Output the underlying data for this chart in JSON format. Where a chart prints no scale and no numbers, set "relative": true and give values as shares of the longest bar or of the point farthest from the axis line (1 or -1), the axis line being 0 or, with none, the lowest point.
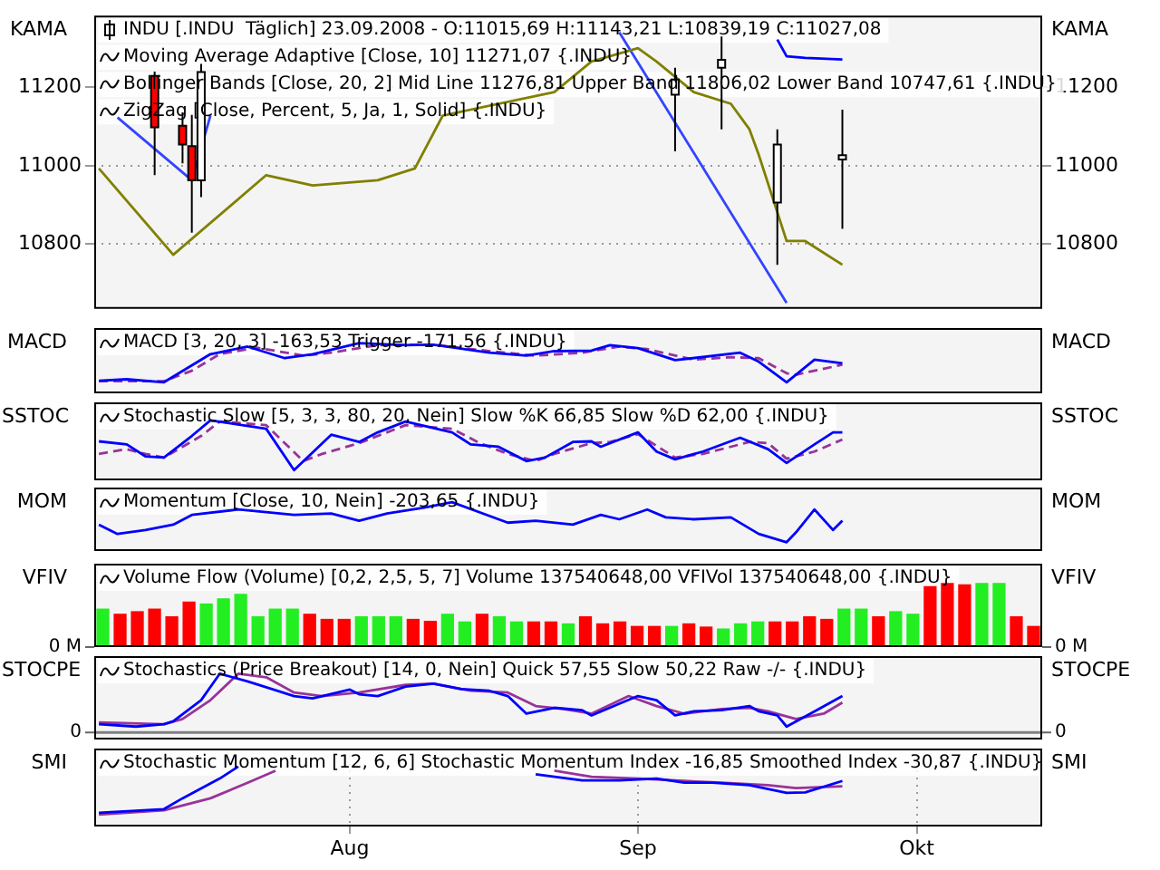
{
  "chart_data": [
    {
      "type": "candlestick",
      "ylabel": "KAMA",
      "y2label": "KAMA",
      "annotations": [
        "INDU [.INDU  Täglich] 23.09.2008 - O:11015,69 H:11143,21 L:10839,19 C:11027,08",
        "Moving Average Adaptive [Close, 10] 11271,07 {.INDU}",
        "Bollinger Bands [Close, 20, 2] Mid Line 11276,81 Upper Band 11806,02 Lower Band 10747,61 {.INDU}",
        "ZigZag [Close, Percent, 5, Ja, 1, Solid] {.INDU}"
      ],
      "x": [
        "2008-07-11",
        "2008-07-14",
        "2008-07-15",
        "2008-07-16",
        "2008-09-05",
        "2008-09-10",
        "2008-09-16",
        "2008-09-23"
      ],
      "ohlc": [
        [
          11229,
          11240,
          10976,
          11098
        ],
        [
          11102,
          11136,
          11006,
          11054
        ],
        [
          11050,
          11130,
          10829,
          10963
        ],
        [
          10963,
          11260,
          10920,
          11239
        ],
        [
          11181,
          11250,
          11037,
          11220
        ],
        [
          11250,
          11330,
          11093,
          11270
        ],
        [
          10906,
          11093,
          10747,
          11054
        ],
        [
          11015.69,
          11143.21,
          10839.19,
          11027.08
        ]
      ],
      "series": [
        {
          "type": "line",
          "color": "#808000",
          "x": [
            "2008-07-05",
            "2008-07-13",
            "2008-07-23",
            "2008-07-28",
            "2008-08-04",
            "2008-08-08",
            "2008-08-11",
            "2008-08-23",
            "2008-08-27",
            "2008-09-01",
            "2008-09-03",
            "2008-09-07",
            "2008-09-11",
            "2008-09-13",
            "2008-09-14",
            "2008-09-17",
            "2008-09-19",
            "2008-09-23"
          ],
          "values": [
            10993,
            10773,
            10976,
            10950,
            10963,
            10993,
            11128,
            11188,
            11266,
            11300,
            11266,
            11188,
            11158,
            11093,
            11028,
            10808,
            10808,
            10747.61
          ]
        },
        {
          "type": "line",
          "color": "#3344ff",
          "x": [
            "2008-07-07",
            "2008-07-15",
            "2008-07-17",
            "2008-08-10",
            "2008-08-30",
            "2008-09-17"
          ],
          "values": [
            11123,
            10963,
            11128,
            null,
            11340,
            10650
          ]
        },
        {
          "type": "line",
          "color": "#0000ff",
          "x": [
            "2008-09-16",
            "2008-09-17",
            "2008-09-19",
            "2008-09-23"
          ],
          "values": [
            11322,
            11279,
            11275,
            11271.07
          ]
        }
      ],
      "xlim": [
        "2008-07-04T12:00",
        "2008-10-14T12:00"
      ],
      "xticks": [
        {
          "value": "2008-08-01",
          "label": null
        },
        {
          "value": "2008-09-01",
          "label": null
        },
        {
          "value": "2008-10-01",
          "label": null
        }
      ],
      "ylim": [
        10635,
        11383
      ],
      "yticks": [
        10800,
        11000,
        11200
      ],
      "y2lim": [
        10635,
        11383
      ],
      "y2ticks": [
        10800,
        11000,
        11200
      ],
      "grid": true,
      "tick_labels": "y"
    },
    {
      "type": "line",
      "ylabel": "MACD",
      "y2label": "MACD",
      "relative": true,
      "annotations": [
        "MACD [3, 20, 3] -163,53 Trigger -171,56 {.INDU}"
      ],
      "series": [
        {
          "color": "#0000ff",
          "x": [
            "2008-07-05",
            "2008-07-08",
            "2008-07-12",
            "2008-07-17",
            "2008-07-21",
            "2008-07-25",
            "2008-07-28",
            "2008-08-02",
            "2008-08-07",
            "2008-08-10",
            "2008-08-16",
            "2008-08-20",
            "2008-08-23",
            "2008-08-27",
            "2008-08-29",
            "2008-09-01",
            "2008-09-05",
            "2008-09-12",
            "2008-09-14",
            "2008-09-17",
            "2008-09-20",
            "2008-09-23"
          ],
          "values": [
            0.25,
            0.28,
            0.22,
            0.78,
            0.93,
            0.7,
            0.78,
            1,
            0.96,
            0.97,
            0.81,
            0.75,
            0.84,
            0.85,
            0.96,
            0.9,
            0.66,
            0.81,
            0.63,
            0.22,
            0.67,
            0.6
          ]
        },
        {
          "color": "#993399",
          "line_style": "dashed",
          "x": [
            "2008-07-05",
            "2008-07-12",
            "2008-07-15",
            "2008-07-18",
            "2008-07-22",
            "2008-07-27",
            "2008-07-30",
            "2008-08-04",
            "2008-08-10",
            "2008-08-16",
            "2008-08-21",
            "2008-08-26",
            "2008-08-30",
            "2008-09-02",
            "2008-09-07",
            "2008-09-11",
            "2008-09-14",
            "2008-09-17",
            "2008-09-18",
            "2008-09-23"
          ],
          "values": [
            0.24,
            0.24,
            0.45,
            0.78,
            0.91,
            0.75,
            0.81,
            0.96,
            0.97,
            0.84,
            0.75,
            0.81,
            0.93,
            0.88,
            0.67,
            0.72,
            0.7,
            0.4,
            0.37,
            0.57
          ]
        }
      ],
      "xlim": [
        "2008-07-04T12:00",
        "2008-10-14T12:00"
      ],
      "xticks": [
        {
          "value": "2008-08-01",
          "label": null
        },
        {
          "value": "2008-09-01",
          "label": null
        },
        {
          "value": "2008-10-01",
          "label": null
        }
      ],
      "grid": "x",
      "tick_labels": false
    },
    {
      "type": "line",
      "ylabel": "SSTOC",
      "y2label": "SSTOC",
      "relative": true,
      "annotations": [
        "Stochastic Slow [5, 3, 3, 80, 20, Nein] Slow %K 66,85 Slow %D 62,00 {.INDU}"
      ],
      "series": [
        {
          "color": "#0000ff",
          "x": [
            "2008-07-05",
            "2008-07-08",
            "2008-07-10",
            "2008-07-12",
            "2008-07-15",
            "2008-07-17",
            "2008-07-23",
            "2008-07-26",
            "2008-07-30",
            "2008-08-02",
            "2008-08-04",
            "2008-08-07",
            "2008-08-12",
            "2008-08-14",
            "2008-08-17",
            "2008-08-20",
            "2008-08-22",
            "2008-08-25",
            "2008-08-27",
            "2008-08-28",
            "2008-09-01",
            "2008-09-03",
            "2008-09-05",
            "2008-09-08",
            "2008-09-12",
            "2008-09-15",
            "2008-09-17",
            "2008-09-20",
            "2008-09-22",
            "2008-09-23"
          ],
          "values": [
            0.65,
            0.6,
            0.4,
            0.38,
            0.74,
            1,
            0.86,
            0.17,
            0.76,
            0.64,
            0.8,
            0.98,
            0.8,
            0.6,
            0.56,
            0.32,
            0.38,
            0.64,
            0.65,
            0.56,
            0.8,
            0.48,
            0.35,
            0.48,
            0.71,
            0.52,
            0.29,
            0.6,
            0.8,
            0.8
          ]
        },
        {
          "color": "#993399",
          "line_style": "dashed",
          "x": [
            "2008-07-05",
            "2008-07-08",
            "2008-07-10",
            "2008-07-12",
            "2008-07-16",
            "2008-07-18",
            "2008-07-23",
            "2008-07-27",
            "2008-07-29",
            "2008-08-02",
            "2008-08-05",
            "2008-08-07",
            "2008-08-12",
            "2008-08-15",
            "2008-08-18",
            "2008-08-21",
            "2008-08-23",
            "2008-08-27",
            "2008-08-29",
            "2008-09-01",
            "2008-09-05",
            "2008-09-08",
            "2008-09-13",
            "2008-09-15",
            "2008-09-17",
            "2008-09-20",
            "2008-09-23"
          ],
          "values": [
            0.44,
            0.52,
            0.44,
            0.38,
            0.74,
            0.98,
            0.92,
            0.32,
            0.44,
            0.62,
            0.8,
            0.92,
            0.86,
            0.62,
            0.44,
            0.32,
            0.44,
            0.62,
            0.64,
            0.77,
            0.38,
            0.44,
            0.64,
            0.62,
            0.36,
            0.48,
            0.68
          ]
        }
      ],
      "xlim": [
        "2008-07-04T12:00",
        "2008-10-14T12:00"
      ],
      "xticks": [
        {
          "value": "2008-08-01",
          "label": null
        },
        {
          "value": "2008-09-01",
          "label": null
        },
        {
          "value": "2008-10-01",
          "label": null
        }
      ],
      "grid": "x",
      "tick_labels": false
    },
    {
      "type": "line",
      "ylabel": "MOM",
      "y2label": "MOM",
      "relative": true,
      "annotations": [
        "Momentum [Close, 10, Nein] -203,65 {.INDU}"
      ],
      "series": [
        {
          "color": "#0000ff",
          "x": [
            "2008-07-05",
            "2008-07-07",
            "2008-07-10",
            "2008-07-13",
            "2008-07-15",
            "2008-07-20",
            "2008-07-26",
            "2008-07-30",
            "2008-08-02",
            "2008-08-05",
            "2008-08-09",
            "2008-08-12",
            "2008-08-18",
            "2008-08-21",
            "2008-08-25",
            "2008-08-28",
            "2008-08-30",
            "2008-09-02",
            "2008-09-04",
            "2008-09-07",
            "2008-09-11",
            "2008-09-14",
            "2008-09-17",
            "2008-09-18",
            "2008-09-20",
            "2008-09-22",
            "2008-09-23"
          ],
          "values": [
            0.54,
            0.35,
            0.43,
            0.54,
            0.74,
            0.85,
            0.74,
            0.77,
            0.62,
            0.77,
            0.89,
            1,
            0.58,
            0.62,
            0.54,
            0.74,
            0.65,
            0.85,
            0.69,
            0.65,
            0.69,
            0.35,
            0.18,
            0.38,
            0.85,
            0.43,
            0.62
          ]
        }
      ],
      "xlim": [
        "2008-07-04T12:00",
        "2008-10-14T12:00"
      ],
      "xticks": [
        {
          "value": "2008-08-01",
          "label": null
        },
        {
          "value": "2008-09-01",
          "label": null
        },
        {
          "value": "2008-10-01",
          "label": null
        }
      ],
      "grid": "x",
      "tick_labels": false
    },
    {
      "type": "bar",
      "ylabel": "VFIV",
      "y2label": "VFIV",
      "relative": true,
      "annotations": [
        "Volume Flow (Volume) [0,2, 2,5, 5, 7] Volume 137540648,00 VFIVol 137540648,00 {.INDU}",
        "0 M"
      ],
      "categories": [
        null,
        null,
        null,
        null,
        null,
        null,
        null,
        null,
        null,
        null,
        null,
        null,
        null,
        null,
        null,
        null,
        null,
        null,
        null,
        null,
        null,
        null,
        null,
        null,
        null,
        null,
        null,
        null,
        null,
        null,
        null,
        null,
        null,
        null,
        null,
        null,
        null,
        null,
        null,
        null,
        null,
        null,
        null,
        null,
        null,
        null,
        null,
        null,
        null,
        null,
        null,
        null,
        null,
        null,
        null
      ],
      "values": [
        0.6,
        0.52,
        0.56,
        0.6,
        0.48,
        0.71,
        0.68,
        0.76,
        0.83,
        0.48,
        0.6,
        0.6,
        0.52,
        0.44,
        0.44,
        0.48,
        0.48,
        0.48,
        0.44,
        0.41,
        0.52,
        0.4,
        0.52,
        0.48,
        0.4,
        0.4,
        0.4,
        0.37,
        0.48,
        0.37,
        0.4,
        0.33,
        0.33,
        0.33,
        0.37,
        0.32,
        0.29,
        0.37,
        0.4,
        0.4,
        0.4,
        0.48,
        0.44,
        0.6,
        0.6,
        0.48,
        0.56,
        0.52,
        0.95,
        1,
        0.98,
        1,
        1,
        0.48,
        0.33
      ],
      "colors": [
        "#22ee22",
        "#ff0000",
        "#ff0000",
        "#ff0000",
        "#ff0000",
        "#ff0000",
        "#22ee22",
        "#22ee22",
        "#22ee22",
        "#22ee22",
        "#22ee22",
        "#22ee22",
        "#ff0000",
        "#ff0000",
        "#ff0000",
        "#22ee22",
        "#22ee22",
        "#22ee22",
        "#ff0000",
        "#ff0000",
        "#22ee22",
        "#22ee22",
        "#ff0000",
        "#22ee22",
        "#22ee22",
        "#ff0000",
        "#ff0000",
        "#22ee22",
        "#ff0000",
        "#ff0000",
        "#ff0000",
        "#ff0000",
        "#ff0000",
        "#22ee22",
        "#ff0000",
        "#ff0000",
        "#22ee22",
        "#22ee22",
        "#22ee22",
        "#ff0000",
        "#ff0000",
        "#ff0000",
        "#ff0000",
        "#22ee22",
        "#22ee22",
        "#ff0000",
        "#22ee22",
        "#22ee22",
        "#ff0000",
        "#ff0000",
        "#ff0000",
        "#22ee22",
        "#22ee22",
        "#ff0000",
        "#ff0000"
      ],
      "tick_labels": false
    },
    {
      "type": "line",
      "ylabel": "STOCPE",
      "y2label": "STOCPE",
      "relative": true,
      "annotations": [
        "Stochastics (Price Breakout) [14, 0, Nein] Quick 57,55 Slow 50,22 Raw -/- {.INDU}",
        "0"
      ],
      "series": [
        {
          "color": "#0000ff",
          "x": [
            "2008-07-05",
            "2008-07-09",
            "2008-07-12",
            "2008-07-13",
            "2008-07-16",
            "2008-07-18",
            "2008-07-21",
            "2008-07-26",
            "2008-07-28",
            "2008-08-01",
            "2008-08-02",
            "2008-08-04",
            "2008-08-07",
            "2008-08-10",
            "2008-08-13",
            "2008-08-16",
            "2008-08-18",
            "2008-08-20",
            "2008-08-23",
            "2008-08-26",
            "2008-08-27",
            "2008-08-30",
            "2008-09-01",
            "2008-09-03",
            "2008-09-05",
            "2008-09-07",
            "2008-09-10",
            "2008-09-13",
            "2008-09-14",
            "2008-09-16",
            "2008-09-17",
            "2008-09-20",
            "2008-09-23"
          ],
          "values": [
            0.14,
            0.1,
            0.14,
            0.19,
            0.55,
            1,
            0.87,
            0.62,
            0.58,
            0.73,
            0.65,
            0.62,
            0.78,
            0.83,
            0.74,
            0.71,
            0.62,
            0.32,
            0.42,
            0.38,
            0.29,
            0.49,
            0.62,
            0.55,
            0.29,
            0.36,
            0.38,
            0.45,
            0.36,
            0.29,
            0.1,
            0.36,
            0.62
          ]
        },
        {
          "color": "#993399",
          "x": [
            "2008-07-05",
            "2008-07-12",
            "2008-07-14",
            "2008-07-17",
            "2008-07-20",
            "2008-07-23",
            "2008-07-26",
            "2008-07-29",
            "2008-08-02",
            "2008-08-07",
            "2008-08-10",
            "2008-08-14",
            "2008-08-18",
            "2008-08-21",
            "2008-08-24",
            "2008-08-27",
            "2008-08-31",
            "2008-09-03",
            "2008-09-06",
            "2008-09-10",
            "2008-09-13",
            "2008-09-15",
            "2008-09-18",
            "2008-09-21",
            "2008-09-23"
          ],
          "values": [
            0.17,
            0.14,
            0.23,
            0.55,
            1,
            0.94,
            0.68,
            0.62,
            0.68,
            0.81,
            0.83,
            0.71,
            0.68,
            0.45,
            0.4,
            0.32,
            0.62,
            0.45,
            0.32,
            0.4,
            0.42,
            0.36,
            0.23,
            0.32,
            0.51
          ]
        }
      ],
      "xlim": [
        "2008-07-04T12:00",
        "2008-10-14T12:00"
      ],
      "xticks": [
        {
          "value": "2008-08-01",
          "label": null
        },
        {
          "value": "2008-09-01",
          "label": null
        },
        {
          "value": "2008-10-01",
          "label": null
        }
      ],
      "grid": "x",
      "tick_labels": false
    },
    {
      "type": "line",
      "ylabel": "SMI",
      "y2label": "SMI",
      "relative": true,
      "annotations": [
        "Stochastic Momentum [12, 6, 6] Stochastic Momentum Index -16,85 Smoothed Index -30,87 {.INDU}"
      ],
      "series": [
        {
          "color": "#0000ff",
          "x": [
            "2008-07-05",
            "2008-07-12",
            "2008-07-14",
            "2008-07-18",
            "2008-07-20"
          ],
          "values": [
            0.23,
            0.29,
            0.47,
            0.8,
            1
          ]
        },
        {
          "color": "#0000ff",
          "x": [
            "2008-08-21",
            "2008-08-26",
            "2008-08-30",
            "2008-09-03",
            "2008-09-06",
            "2008-09-09",
            "2008-09-13",
            "2008-09-17",
            "2008-09-19",
            "2008-09-23"
          ],
          "values": [
            0.87,
            0.77,
            0.77,
            0.8,
            0.73,
            0.73,
            0.69,
            0.56,
            0.57,
            0.76
          ]
        },
        {
          "color": "#993399",
          "x": [
            "2008-07-05",
            "2008-07-12",
            "2008-07-17",
            "2008-07-21",
            "2008-07-24"
          ],
          "values": [
            0.2,
            0.27,
            0.47,
            0.73,
            0.93
          ]
        },
        {
          "color": "#993399",
          "x": [
            "2008-08-23",
            "2008-08-27",
            "2008-09-01",
            "2008-09-06",
            "2008-09-10",
            "2008-09-15",
            "2008-09-18",
            "2008-09-23"
          ],
          "values": [
            0.93,
            0.83,
            0.8,
            0.76,
            0.73,
            0.69,
            0.64,
            0.67
          ]
        }
      ],
      "xlim": [
        "2008-07-04T12:00",
        "2008-10-14T12:00"
      ],
      "xticks": [
        {
          "value": "2008-08-01",
          "label": "Aug"
        },
        {
          "value": "2008-09-01",
          "label": "Sep"
        },
        {
          "value": "2008-10-01",
          "label": "Okt"
        }
      ],
      "grid": "x",
      "tick_labels": "x"
    }
  ]
}
